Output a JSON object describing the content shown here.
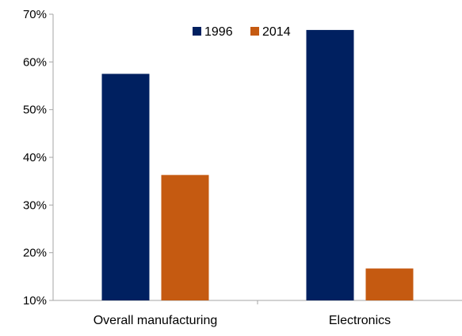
{
  "chart_data": {
    "type": "bar",
    "title": "",
    "xlabel": "",
    "ylabel": "",
    "categories": [
      "Overall manufacturing",
      "Electronics"
    ],
    "series": [
      {
        "name": "1996",
        "values": [
          57.5,
          66.7
        ],
        "color": "#002060"
      },
      {
        "name": "2014",
        "values": [
          36.3,
          16.7
        ],
        "color": "#C55A11"
      }
    ],
    "ylim": [
      10,
      70
    ],
    "yticks": [
      10,
      20,
      30,
      40,
      50,
      60,
      70
    ],
    "ytick_labels": [
      "10%",
      "20%",
      "30%",
      "40%",
      "50%",
      "60%",
      "70%"
    ],
    "grid": false,
    "legend_position": "top-center",
    "axis_color": "#A6A6A6"
  }
}
